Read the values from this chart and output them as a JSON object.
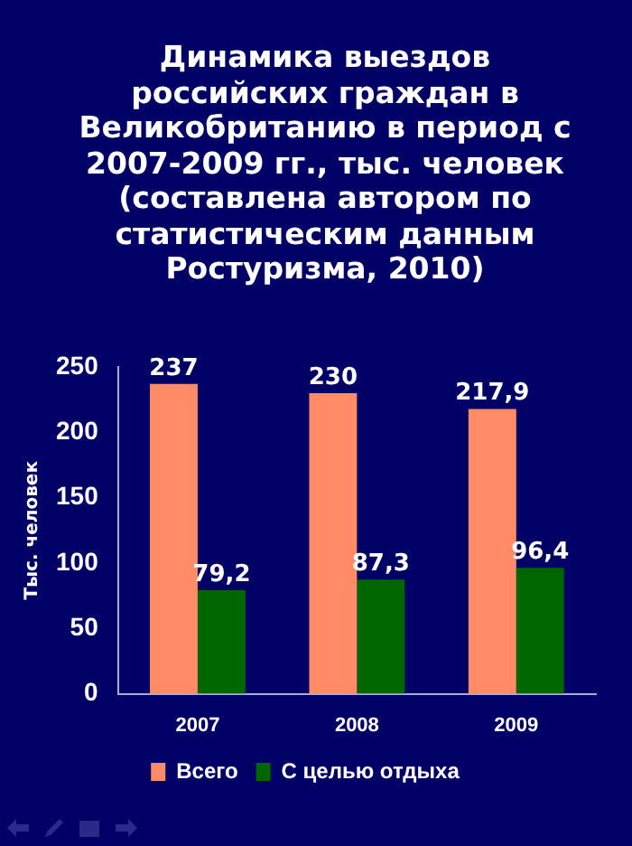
{
  "chart_data": {
    "type": "bar",
    "title": "Динамика выездов российских граждан в Великобританию в период с 2007-2009 гг., тыс. человек (составлена автором по статистическим данным Ростуризма, 2010)",
    "ylabel": "Тыс. человек",
    "categories": [
      "2007",
      "2008",
      "2009"
    ],
    "series": [
      {
        "name": "Всего",
        "color": "#ff8c66",
        "values": [
          237,
          230,
          217.9
        ],
        "value_labels": [
          "237",
          "230",
          "217,9"
        ]
      },
      {
        "name": "С целью отдыха",
        "color": "#006600",
        "values": [
          79.2,
          87.3,
          96.4
        ],
        "value_labels": [
          "79,2",
          "87,3",
          "96,4"
        ]
      }
    ],
    "ylim": [
      0,
      250
    ],
    "yticks": [
      0,
      50,
      100,
      150,
      200,
      250
    ],
    "grid": false,
    "legend": "bottom"
  }
}
